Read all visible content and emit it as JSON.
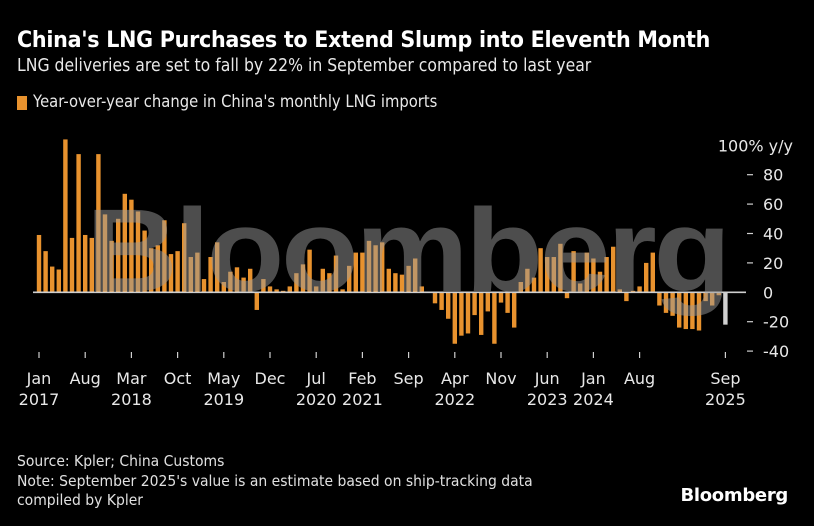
{
  "header": {
    "title": "China's LNG Purchases to Extend Slump into Eleventh Month",
    "subtitle": "LNG deliveries are set to fall by 22% in September compared to last year"
  },
  "footer": {
    "source": "Source: Kpler; China Customs",
    "note_line1": "Note: September 2025's value is an estimate based on ship-tracking data",
    "note_line2": "compiled by Kpler",
    "logo": "Bloomberg"
  },
  "watermark": "Bloomberg",
  "colors": {
    "bar": "#e8922e",
    "estimate_bar": "#d0d0d0",
    "zero_line": "#cfcfcf",
    "background": "#000000"
  },
  "chart_data": {
    "type": "bar",
    "title": "China's LNG Purchases to Extend Slump into Eleventh Month",
    "subtitle": "LNG deliveries are set to fall by 22% in September compared to last year",
    "legend": [
      {
        "label": "Year-over-year change in China's monthly LNG imports",
        "color": "#e8922e"
      }
    ],
    "legend_position": "top-left",
    "xlabel": "",
    "ylabel": "% y/y",
    "y_unit_label": "100% y/y",
    "ylim": [
      -40,
      100
    ],
    "yticks": [
      100,
      80,
      60,
      40,
      20,
      0,
      -20,
      -40
    ],
    "ytick_labels": [
      "100% y/y",
      "80",
      "60",
      "40",
      "20",
      "0",
      "-20",
      "-40"
    ],
    "y_axis_side": "right",
    "grid": false,
    "start": "2017-01",
    "end": "2025-09",
    "xticks": [
      {
        "month_index": 0,
        "line1": "Jan",
        "line2": "2017"
      },
      {
        "month_index": 7,
        "line1": "Aug",
        "line2": ""
      },
      {
        "month_index": 14,
        "line1": "Mar",
        "line2": "2018"
      },
      {
        "month_index": 21,
        "line1": "Oct",
        "line2": ""
      },
      {
        "month_index": 28,
        "line1": "May",
        "line2": "2019"
      },
      {
        "month_index": 35,
        "line1": "Dec",
        "line2": ""
      },
      {
        "month_index": 42,
        "line1": "Jul",
        "line2": "2020"
      },
      {
        "month_index": 49,
        "line1": "Feb",
        "line2": "2021"
      },
      {
        "month_index": 56,
        "line1": "Sep",
        "line2": ""
      },
      {
        "month_index": 63,
        "line1": "Apr",
        "line2": "2022"
      },
      {
        "month_index": 70,
        "line1": "Nov",
        "line2": ""
      },
      {
        "month_index": 77,
        "line1": "Jun",
        "line2": "2023"
      },
      {
        "month_index": 84,
        "line1": "Jan",
        "line2": "2024"
      },
      {
        "month_index": 91,
        "line1": "Aug",
        "line2": ""
      },
      {
        "month_index": 104,
        "line1": "Sep",
        "line2": "2025"
      }
    ],
    "estimate_month_index": 104,
    "values": [
      39,
      28,
      17.5,
      15.5,
      104,
      37,
      94,
      39,
      37,
      94,
      53,
      35,
      50,
      67,
      63,
      55,
      42,
      30,
      32,
      49,
      26,
      28,
      47,
      24,
      27,
      9,
      24,
      34,
      7,
      14,
      17,
      10,
      16,
      -12,
      9,
      4,
      2,
      1,
      4,
      13,
      19,
      29,
      4,
      16,
      13,
      25,
      2,
      18,
      27,
      27,
      35,
      32,
      34,
      16,
      13,
      12,
      18,
      23,
      4,
      0,
      -7.5,
      -12,
      -18,
      -35,
      -29.5,
      -28,
      -15.5,
      -29,
      -13,
      -35,
      -7,
      -14,
      -24,
      7,
      16,
      10,
      30,
      24,
      24,
      33,
      -4,
      28,
      6,
      27,
      23,
      14,
      24,
      31,
      2,
      -6,
      1,
      4,
      20,
      27,
      -9,
      -14,
      -16,
      -24,
      -25,
      -25,
      -26,
      -6,
      -9,
      -2,
      -22
    ]
  }
}
